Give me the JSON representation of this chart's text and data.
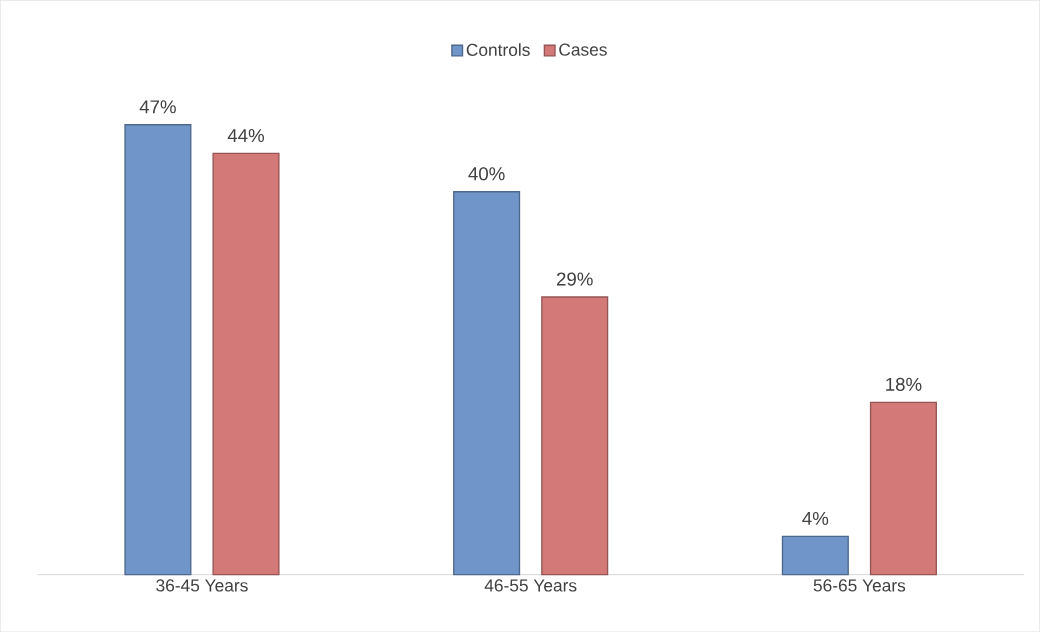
{
  "chart_data": {
    "type": "bar",
    "categories": [
      "36-45 Years",
      "46-55 Years",
      "56-65 Years"
    ],
    "series": [
      {
        "name": "Controls",
        "color": "#6f95c9",
        "values": [
          47,
          40,
          4
        ],
        "value_labels": [
          "47%",
          "40%",
          "4%"
        ]
      },
      {
        "name": "Cases",
        "color": "#d37a78",
        "values": [
          44,
          29,
          18
        ],
        "value_labels": [
          "44%",
          "29%",
          "18%"
        ]
      }
    ],
    "legend": "top"
  }
}
